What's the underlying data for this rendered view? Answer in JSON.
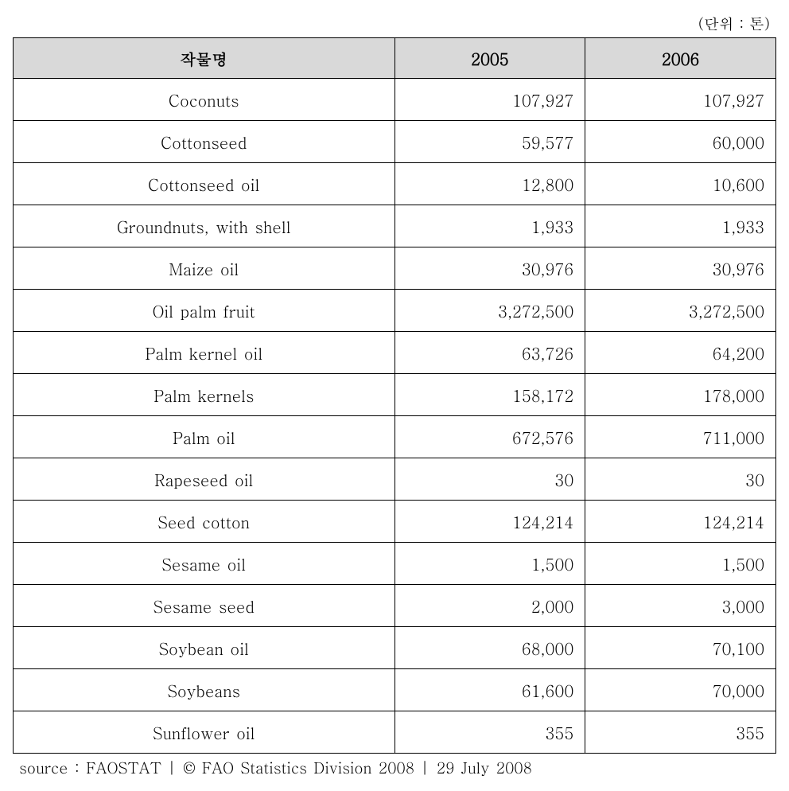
{
  "unit_label": "(단위 : 톤)",
  "table": {
    "type": "table",
    "header_bg": "#d9d9d9",
    "border_color": "#000000",
    "font_size_pt": 15,
    "columns": [
      {
        "key": "name",
        "label": "작물명",
        "align": "center",
        "width_pct": 50
      },
      {
        "key": "y2005",
        "label": "2005",
        "align": "right",
        "width_pct": 25
      },
      {
        "key": "y2006",
        "label": "2006",
        "align": "right",
        "width_pct": 25
      }
    ],
    "rows": [
      {
        "name": "Coconuts",
        "y2005": "107,927",
        "y2006": "107,927"
      },
      {
        "name": "Cottonseed",
        "y2005": "59,577",
        "y2006": "60,000"
      },
      {
        "name": "Cottonseed oil",
        "y2005": "12,800",
        "y2006": "10,600"
      },
      {
        "name": "Groundnuts, with shell",
        "y2005": "1,933",
        "y2006": "1,933"
      },
      {
        "name": "Maize oil",
        "y2005": "30,976",
        "y2006": "30,976"
      },
      {
        "name": "Oil palm fruit",
        "y2005": "3,272,500",
        "y2006": "3,272,500"
      },
      {
        "name": "Palm kernel oil",
        "y2005": "63,726",
        "y2006": "64,200"
      },
      {
        "name": "Palm kernels",
        "y2005": "158,172",
        "y2006": "178,000"
      },
      {
        "name": "Palm oil",
        "y2005": "672,576",
        "y2006": "711,000"
      },
      {
        "name": "Rapeseed oil",
        "y2005": "30",
        "y2006": "30"
      },
      {
        "name": "Seed cotton",
        "y2005": "124,214",
        "y2006": "124,214"
      },
      {
        "name": "Sesame oil",
        "y2005": "1,500",
        "y2006": "1,500"
      },
      {
        "name": "Sesame seed",
        "y2005": "2,000",
        "y2006": "3,000"
      },
      {
        "name": "Soybean oil",
        "y2005": "68,000",
        "y2006": "70,100"
      },
      {
        "name": "Soybeans",
        "y2005": "61,600",
        "y2006": "70,000"
      },
      {
        "name": "Sunflower oil",
        "y2005": "355",
        "y2006": "355"
      }
    ]
  },
  "source": "source : FAOSTAT | © FAO Statistics Division 2008 | 29 July 2008"
}
